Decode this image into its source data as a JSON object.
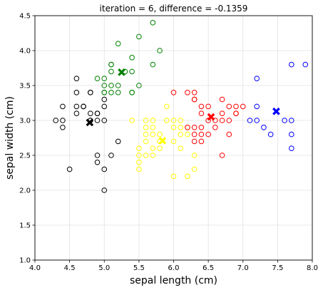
{
  "chart_data": {
    "type": "scatter",
    "title": "iteration = 6, difference = -0.1359",
    "xlabel": "sepal length (cm)",
    "ylabel": "sepal width (cm)",
    "xlim": [
      4.0,
      8.0
    ],
    "ylim": [
      1.0,
      4.5
    ],
    "xticks": [
      "4.0",
      "4.5",
      "5.0",
      "5.5",
      "6.0",
      "6.5",
      "7.0",
      "7.5",
      "8.0"
    ],
    "yticks": [
      "1.0",
      "1.5",
      "2.0",
      "2.5",
      "3.0",
      "3.5",
      "4.0",
      "4.5"
    ],
    "grid": true,
    "series": [
      {
        "color": "#000000",
        "marker": "open-circle",
        "points": [
          [
            4.3,
            3.0
          ],
          [
            4.4,
            3.2
          ],
          [
            4.4,
            3.0
          ],
          [
            4.4,
            2.9
          ],
          [
            4.5,
            2.3
          ],
          [
            4.6,
            3.6
          ],
          [
            4.6,
            3.4
          ],
          [
            4.6,
            3.2
          ],
          [
            4.6,
            3.1
          ],
          [
            4.7,
            3.2
          ],
          [
            4.7,
            3.2
          ],
          [
            4.8,
            3.4
          ],
          [
            4.8,
            3.4
          ],
          [
            4.8,
            3.1
          ],
          [
            4.8,
            3.0
          ],
          [
            4.8,
            3.0
          ],
          [
            4.9,
            3.1
          ],
          [
            4.9,
            3.0
          ],
          [
            4.9,
            3.1
          ],
          [
            4.9,
            2.5
          ],
          [
            4.9,
            2.4
          ],
          [
            5.0,
            3.2
          ],
          [
            5.0,
            3.0
          ],
          [
            5.0,
            3.3
          ],
          [
            5.0,
            2.3
          ],
          [
            5.0,
            2.0
          ],
          [
            5.1,
            2.5
          ],
          [
            5.2,
            2.7
          ]
        ]
      },
      {
        "color": "#008000",
        "marker": "open-circle",
        "points": [
          [
            4.9,
            3.6
          ],
          [
            5.0,
            3.6
          ],
          [
            5.0,
            3.5
          ],
          [
            5.0,
            3.4
          ],
          [
            5.0,
            3.4
          ],
          [
            5.1,
            3.8
          ],
          [
            5.1,
            3.7
          ],
          [
            5.1,
            3.5
          ],
          [
            5.1,
            3.4
          ],
          [
            5.2,
            4.1
          ],
          [
            5.2,
            3.5
          ],
          [
            5.2,
            3.4
          ],
          [
            5.1,
            3.8
          ],
          [
            5.3,
            3.7
          ],
          [
            5.4,
            3.7
          ],
          [
            5.4,
            3.9
          ],
          [
            5.4,
            3.4
          ],
          [
            5.4,
            3.4
          ],
          [
            5.5,
            4.2
          ],
          [
            5.5,
            3.5
          ],
          [
            5.7,
            4.4
          ],
          [
            5.7,
            3.8
          ],
          [
            5.8,
            4.0
          ]
        ]
      },
      {
        "color": "#ffff00",
        "marker": "open-circle",
        "points": [
          [
            5.4,
            3.0
          ],
          [
            5.5,
            2.5
          ],
          [
            5.5,
            2.4
          ],
          [
            5.5,
            2.3
          ],
          [
            5.5,
            2.6
          ],
          [
            5.6,
            3.0
          ],
          [
            5.6,
            2.9
          ],
          [
            5.6,
            2.8
          ],
          [
            5.6,
            2.7
          ],
          [
            5.6,
            2.5
          ],
          [
            5.7,
            3.0
          ],
          [
            5.7,
            2.9
          ],
          [
            5.7,
            2.8
          ],
          [
            5.7,
            2.6
          ],
          [
            5.7,
            2.5
          ],
          [
            5.8,
            2.8
          ],
          [
            5.8,
            2.7
          ],
          [
            5.8,
            2.6
          ],
          [
            5.9,
            3.2
          ],
          [
            5.9,
            3.0
          ],
          [
            6.0,
            3.0
          ],
          [
            6.0,
            2.9
          ],
          [
            6.0,
            2.7
          ],
          [
            6.0,
            2.2
          ],
          [
            6.1,
            3.0
          ],
          [
            6.1,
            2.9
          ],
          [
            6.1,
            2.8
          ],
          [
            6.1,
            2.6
          ],
          [
            6.2,
            2.8
          ],
          [
            6.2,
            2.2
          ],
          [
            6.3,
            2.5
          ],
          [
            6.3,
            2.3
          ],
          [
            6.2,
            2.9
          ],
          [
            5.8,
            2.7
          ]
        ]
      },
      {
        "color": "#ff0000",
        "marker": "open-circle",
        "points": [
          [
            6.0,
            3.4
          ],
          [
            6.2,
            3.4
          ],
          [
            6.3,
            3.4
          ],
          [
            6.3,
            3.3
          ],
          [
            6.3,
            3.3
          ],
          [
            6.4,
            3.2
          ],
          [
            6.4,
            3.1
          ],
          [
            6.3,
            2.9
          ],
          [
            6.3,
            2.8
          ],
          [
            6.3,
            2.7
          ],
          [
            6.4,
            2.9
          ],
          [
            6.4,
            2.8
          ],
          [
            6.4,
            2.7
          ],
          [
            6.5,
            3.2
          ],
          [
            6.5,
            3.0
          ],
          [
            6.5,
            2.8
          ],
          [
            6.6,
            3.0
          ],
          [
            6.6,
            2.9
          ],
          [
            6.7,
            3.3
          ],
          [
            6.7,
            3.1
          ],
          [
            6.7,
            3.0
          ],
          [
            6.7,
            2.5
          ],
          [
            6.8,
            3.2
          ],
          [
            6.8,
            3.0
          ],
          [
            6.8,
            2.8
          ],
          [
            6.9,
            3.2
          ],
          [
            6.9,
            3.1
          ],
          [
            6.9,
            3.1
          ],
          [
            7.0,
            3.2
          ],
          [
            6.2,
            2.9
          ]
        ]
      },
      {
        "color": "#0000ff",
        "marker": "open-circle",
        "points": [
          [
            7.1,
            3.0
          ],
          [
            7.2,
            3.6
          ],
          [
            7.2,
            3.2
          ],
          [
            7.2,
            3.0
          ],
          [
            7.3,
            2.9
          ],
          [
            7.4,
            2.8
          ],
          [
            7.6,
            3.0
          ],
          [
            7.7,
            3.8
          ],
          [
            7.7,
            3.0
          ],
          [
            7.7,
            2.8
          ],
          [
            7.7,
            2.6
          ],
          [
            7.9,
            3.8
          ]
        ]
      }
    ],
    "centroids": [
      {
        "color": "#000000",
        "x": 4.79,
        "y": 2.97
      },
      {
        "color": "#008000",
        "x": 5.25,
        "y": 3.69
      },
      {
        "color": "#ffff00",
        "x": 5.84,
        "y": 2.71
      },
      {
        "color": "#ff0000",
        "x": 6.54,
        "y": 3.05
      },
      {
        "color": "#0000ff",
        "x": 7.48,
        "y": 3.13
      }
    ]
  }
}
